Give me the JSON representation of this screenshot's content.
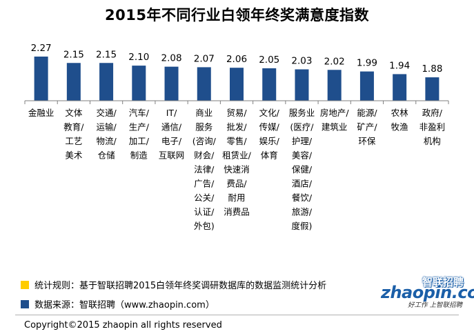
{
  "chart_data": {
    "type": "bar",
    "title": "2015年不同行业白领年终奖满意度指数",
    "xlabel": "",
    "ylabel": "",
    "ylim": [
      0,
      2.4
    ],
    "grid": false,
    "bar_color": "#1f4e8c",
    "categories": [
      [
        "金融业"
      ],
      [
        "文体",
        "教育/",
        "工艺",
        "美术"
      ],
      [
        "交通/",
        "运输/",
        "物流/",
        "仓储"
      ],
      [
        "汽车/",
        "生产/",
        "加工/",
        "制造"
      ],
      [
        "IT/",
        "通信/",
        "电子/",
        "互联网"
      ],
      [
        "商业",
        "服务",
        "(咨询/",
        "财会/",
        "法律/",
        "广告/",
        "公关/",
        "认证/",
        "外包)"
      ],
      [
        "贸易/",
        "批发/",
        "零售/",
        "租赁业/",
        "快速消",
        "费品/",
        "耐用",
        "消费品"
      ],
      [
        "文化/",
        "传媒/",
        "娱乐/",
        "体育"
      ],
      [
        "服务业",
        "(医疗/",
        "护理/",
        "美容/",
        "保健/",
        "酒店/",
        "餐饮/",
        "旅游/",
        "度假)"
      ],
      [
        "房地产/",
        "建筑业"
      ],
      [
        "能源/",
        "矿产/",
        "环保"
      ],
      [
        "农林",
        "牧渔"
      ],
      [
        "政府/",
        "非盈利",
        "机构"
      ]
    ],
    "values": [
      2.27,
      2.15,
      2.15,
      2.1,
      2.08,
      2.07,
      2.06,
      2.05,
      2.03,
      2.02,
      1.99,
      1.94,
      1.88
    ],
    "value_labels": [
      "2.27",
      "2.15",
      "2.15",
      "2.10",
      "2.08",
      "2.07",
      "2.06",
      "2.05",
      "2.03",
      "2.02",
      "1.99",
      "1.94",
      "1.88"
    ]
  },
  "legend": {
    "rule_color": "#ffcc00",
    "rule_text": "统计规则：基于智联招聘2015白领年终奖调研数据库的数据监测统计分析",
    "source_color": "#1f4e8c",
    "source_text": "数据来源：智联招聘（www.zhaopin.com）"
  },
  "logo": {
    "cn": "智联招聘",
    "en": "zhaopin.com",
    "slogan": "好工作 上智联招聘"
  },
  "footer": {
    "copyright": "Copyright©2015 zhaopin all rights reserved"
  }
}
